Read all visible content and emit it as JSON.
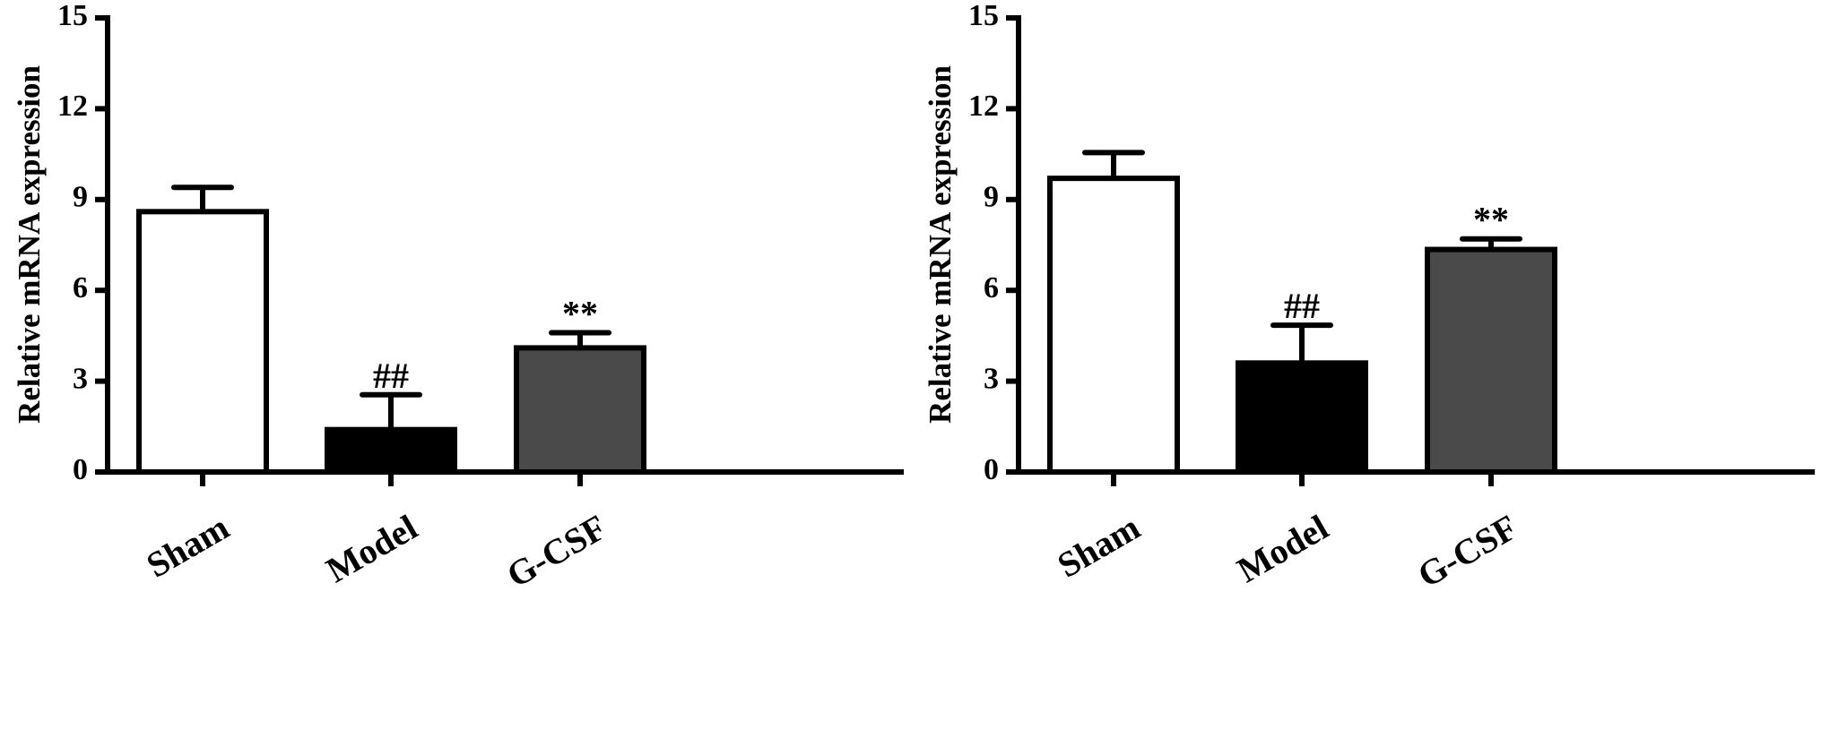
{
  "chart_data": [
    {
      "type": "bar",
      "ylabel": "Relative mRNA expression",
      "categories": [
        "Sham",
        "Model",
        "G-CSF"
      ],
      "values": [
        8.6,
        1.4,
        4.1
      ],
      "errors": [
        0.8,
        1.15,
        0.5
      ],
      "annotations": [
        "",
        "##",
        "**"
      ],
      "bar_fills": [
        "#ffffff",
        "#000000",
        "#4a4a4a"
      ],
      "ylim": [
        0,
        15
      ],
      "yticks": [
        "0",
        "3",
        "6",
        "9",
        "12",
        "15"
      ],
      "grid": false
    },
    {
      "type": "bar",
      "ylabel": "Relative mRNA expression",
      "categories": [
        "Sham",
        "Model",
        "G-CSF"
      ],
      "values": [
        9.7,
        3.6,
        7.35
      ],
      "errors": [
        0.85,
        1.25,
        0.35
      ],
      "annotations": [
        "",
        "##",
        "**"
      ],
      "bar_fills": [
        "#ffffff",
        "#000000",
        "#4a4a4a"
      ],
      "ylim": [
        0,
        15
      ],
      "yticks": [
        "0",
        "3",
        "6",
        "9",
        "12",
        "15"
      ],
      "grid": false
    }
  ]
}
